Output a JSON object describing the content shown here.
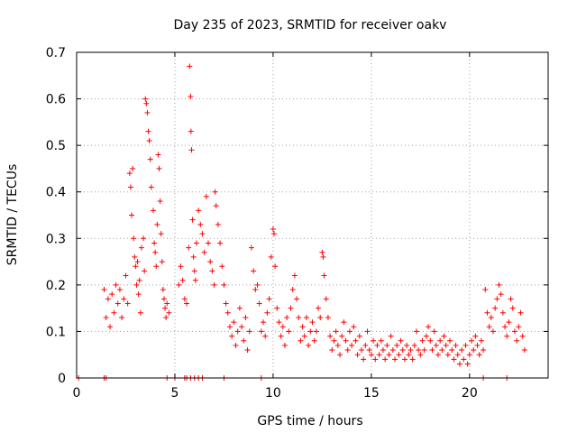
{
  "chart_data": {
    "type": "scatter",
    "title": "Day 235 of 2023, SRMTID for receiver oakv",
    "xlabel": "GPS time / hours",
    "ylabel": "SRMTID / TECUs",
    "xlim": [
      0,
      24
    ],
    "ylim": [
      0,
      0.7
    ],
    "grid": true,
    "marker": "+",
    "color": "#ff0000",
    "x_ticks": [
      {
        "value": 0,
        "label": "0"
      },
      {
        "value": 5,
        "label": "5"
      },
      {
        "value": 10,
        "label": "10"
      },
      {
        "value": 15,
        "label": "15"
      },
      {
        "value": 20,
        "label": "20"
      }
    ],
    "y_ticks": [
      {
        "value": 0,
        "label": "0"
      },
      {
        "value": 0.1,
        "label": "0.1"
      },
      {
        "value": 0.2,
        "label": "0.2"
      },
      {
        "value": 0.3,
        "label": "0.3"
      },
      {
        "value": 0.4,
        "label": "0.4"
      },
      {
        "value": 0.5,
        "label": "0.5"
      },
      {
        "value": 0.6,
        "label": "0.6"
      },
      {
        "value": 0.7,
        "label": "0.7"
      }
    ],
    "series": [
      {
        "name": "SRMTID",
        "points": [
          [
            0.1,
            0.0
          ],
          [
            1.4,
            0.0
          ],
          [
            1.5,
            0.0
          ],
          [
            4.6,
            0.0
          ],
          [
            5.0,
            0.0
          ],
          [
            5.5,
            0.0
          ],
          [
            5.6,
            0.0
          ],
          [
            5.8,
            0.0
          ],
          [
            6.0,
            0.0
          ],
          [
            6.2,
            0.0
          ],
          [
            6.4,
            0.0
          ],
          [
            7.5,
            0.0
          ],
          [
            9.4,
            0.0
          ],
          [
            20.7,
            0.0
          ],
          [
            21.9,
            0.0
          ],
          [
            1.4,
            0.19
          ],
          [
            1.5,
            0.13
          ],
          [
            1.6,
            0.17
          ],
          [
            1.7,
            0.11
          ],
          [
            1.8,
            0.18
          ],
          [
            1.9,
            0.14
          ],
          [
            2.0,
            0.2
          ],
          [
            2.1,
            0.16
          ],
          [
            2.2,
            0.19
          ],
          [
            2.3,
            0.13
          ],
          [
            2.4,
            0.17
          ],
          [
            2.5,
            0.22
          ],
          [
            2.6,
            0.16
          ],
          [
            2.7,
            0.44
          ],
          [
            2.75,
            0.41
          ],
          [
            2.8,
            0.35
          ],
          [
            2.85,
            0.45
          ],
          [
            2.9,
            0.3
          ],
          [
            2.95,
            0.26
          ],
          [
            3.0,
            0.24
          ],
          [
            3.05,
            0.2
          ],
          [
            3.1,
            0.25
          ],
          [
            3.15,
            0.18
          ],
          [
            3.2,
            0.21
          ],
          [
            3.25,
            0.14
          ],
          [
            3.3,
            0.28
          ],
          [
            3.4,
            0.3
          ],
          [
            3.45,
            0.23
          ],
          [
            3.5,
            0.6
          ],
          [
            3.55,
            0.59
          ],
          [
            3.6,
            0.57
          ],
          [
            3.65,
            0.53
          ],
          [
            3.7,
            0.51
          ],
          [
            3.75,
            0.47
          ],
          [
            3.8,
            0.41
          ],
          [
            3.9,
            0.36
          ],
          [
            3.95,
            0.29
          ],
          [
            4.0,
            0.27
          ],
          [
            4.05,
            0.24
          ],
          [
            4.1,
            0.33
          ],
          [
            4.15,
            0.48
          ],
          [
            4.2,
            0.45
          ],
          [
            4.25,
            0.38
          ],
          [
            4.3,
            0.31
          ],
          [
            4.35,
            0.25
          ],
          [
            4.4,
            0.19
          ],
          [
            4.45,
            0.17
          ],
          [
            4.5,
            0.15
          ],
          [
            4.55,
            0.13
          ],
          [
            4.6,
            0.16
          ],
          [
            4.7,
            0.14
          ],
          [
            5.2,
            0.2
          ],
          [
            5.3,
            0.24
          ],
          [
            5.4,
            0.21
          ],
          [
            5.5,
            0.17
          ],
          [
            5.6,
            0.16
          ],
          [
            5.7,
            0.28
          ],
          [
            5.75,
            0.67
          ],
          [
            5.8,
            0.605
          ],
          [
            5.82,
            0.53
          ],
          [
            5.85,
            0.49
          ],
          [
            5.9,
            0.34
          ],
          [
            5.95,
            0.26
          ],
          [
            6.0,
            0.23
          ],
          [
            6.05,
            0.21
          ],
          [
            6.1,
            0.29
          ],
          [
            6.2,
            0.36
          ],
          [
            6.3,
            0.33
          ],
          [
            6.4,
            0.31
          ],
          [
            6.5,
            0.27
          ],
          [
            6.6,
            0.39
          ],
          [
            6.7,
            0.29
          ],
          [
            6.8,
            0.25
          ],
          [
            6.9,
            0.23
          ],
          [
            7.0,
            0.2
          ],
          [
            7.05,
            0.4
          ],
          [
            7.1,
            0.37
          ],
          [
            7.2,
            0.33
          ],
          [
            7.3,
            0.29
          ],
          [
            7.4,
            0.24
          ],
          [
            7.5,
            0.2
          ],
          [
            7.6,
            0.16
          ],
          [
            7.7,
            0.14
          ],
          [
            7.8,
            0.11
          ],
          [
            7.9,
            0.09
          ],
          [
            8.0,
            0.12
          ],
          [
            8.1,
            0.07
          ],
          [
            8.2,
            0.1
          ],
          [
            8.3,
            0.15
          ],
          [
            8.4,
            0.11
          ],
          [
            8.5,
            0.08
          ],
          [
            8.6,
            0.13
          ],
          [
            8.7,
            0.06
          ],
          [
            8.8,
            0.1
          ],
          [
            8.9,
            0.28
          ],
          [
            9.0,
            0.23
          ],
          [
            9.1,
            0.19
          ],
          [
            9.2,
            0.2
          ],
          [
            9.3,
            0.16
          ],
          [
            9.4,
            0.1
          ],
          [
            9.5,
            0.12
          ],
          [
            9.6,
            0.09
          ],
          [
            9.7,
            0.14
          ],
          [
            9.8,
            0.17
          ],
          [
            9.9,
            0.26
          ],
          [
            10.0,
            0.32
          ],
          [
            10.05,
            0.31
          ],
          [
            10.1,
            0.24
          ],
          [
            10.2,
            0.15
          ],
          [
            10.3,
            0.12
          ],
          [
            10.4,
            0.09
          ],
          [
            10.5,
            0.11
          ],
          [
            10.6,
            0.07
          ],
          [
            10.7,
            0.13
          ],
          [
            10.8,
            0.1
          ],
          [
            10.9,
            0.15
          ],
          [
            11.0,
            0.19
          ],
          [
            11.1,
            0.22
          ],
          [
            11.2,
            0.17
          ],
          [
            11.3,
            0.13
          ],
          [
            11.4,
            0.08
          ],
          [
            11.5,
            0.11
          ],
          [
            11.6,
            0.09
          ],
          [
            11.7,
            0.13
          ],
          [
            11.8,
            0.07
          ],
          [
            11.9,
            0.1
          ],
          [
            12.0,
            0.12
          ],
          [
            12.1,
            0.08
          ],
          [
            12.2,
            0.1
          ],
          [
            12.3,
            0.15
          ],
          [
            12.4,
            0.13
          ],
          [
            12.5,
            0.27
          ],
          [
            12.55,
            0.26
          ],
          [
            12.6,
            0.22
          ],
          [
            12.7,
            0.17
          ],
          [
            12.8,
            0.13
          ],
          [
            12.9,
            0.09
          ],
          [
            13.0,
            0.06
          ],
          [
            13.1,
            0.08
          ],
          [
            13.2,
            0.1
          ],
          [
            13.3,
            0.07
          ],
          [
            13.4,
            0.05
          ],
          [
            13.5,
            0.09
          ],
          [
            13.6,
            0.12
          ],
          [
            13.7,
            0.08
          ],
          [
            13.8,
            0.06
          ],
          [
            13.9,
            0.1
          ],
          [
            14.0,
            0.07
          ],
          [
            14.1,
            0.11
          ],
          [
            14.2,
            0.08
          ],
          [
            14.3,
            0.05
          ],
          [
            14.4,
            0.09
          ],
          [
            14.5,
            0.06
          ],
          [
            14.6,
            0.04
          ],
          [
            14.7,
            0.07
          ],
          [
            14.8,
            0.1
          ],
          [
            14.9,
            0.06
          ],
          [
            15.0,
            0.05
          ],
          [
            15.1,
            0.08
          ],
          [
            15.2,
            0.04
          ],
          [
            15.3,
            0.07
          ],
          [
            15.4,
            0.05
          ],
          [
            15.5,
            0.08
          ],
          [
            15.6,
            0.06
          ],
          [
            15.7,
            0.04
          ],
          [
            15.8,
            0.07
          ],
          [
            15.9,
            0.05
          ],
          [
            16.0,
            0.09
          ],
          [
            16.1,
            0.06
          ],
          [
            16.2,
            0.04
          ],
          [
            16.3,
            0.07
          ],
          [
            16.4,
            0.05
          ],
          [
            16.5,
            0.08
          ],
          [
            16.6,
            0.06
          ],
          [
            16.7,
            0.04
          ],
          [
            16.8,
            0.07
          ],
          [
            16.9,
            0.05
          ],
          [
            17.0,
            0.06
          ],
          [
            17.1,
            0.04
          ],
          [
            17.2,
            0.07
          ],
          [
            17.3,
            0.1
          ],
          [
            17.4,
            0.06
          ],
          [
            17.5,
            0.05
          ],
          [
            17.6,
            0.08
          ],
          [
            17.7,
            0.06
          ],
          [
            17.8,
            0.09
          ],
          [
            17.9,
            0.11
          ],
          [
            18.0,
            0.08
          ],
          [
            18.1,
            0.06
          ],
          [
            18.2,
            0.1
          ],
          [
            18.3,
            0.07
          ],
          [
            18.4,
            0.05
          ],
          [
            18.5,
            0.08
          ],
          [
            18.6,
            0.06
          ],
          [
            18.7,
            0.09
          ],
          [
            18.8,
            0.07
          ],
          [
            18.9,
            0.05
          ],
          [
            19.0,
            0.08
          ],
          [
            19.1,
            0.06
          ],
          [
            19.2,
            0.04
          ],
          [
            19.3,
            0.07
          ],
          [
            19.4,
            0.05
          ],
          [
            19.5,
            0.03
          ],
          [
            19.6,
            0.06
          ],
          [
            19.7,
            0.04
          ],
          [
            19.8,
            0.07
          ],
          [
            19.9,
            0.03
          ],
          [
            20.0,
            0.05
          ],
          [
            20.1,
            0.08
          ],
          [
            20.2,
            0.06
          ],
          [
            20.3,
            0.09
          ],
          [
            20.4,
            0.07
          ],
          [
            20.5,
            0.05
          ],
          [
            20.6,
            0.08
          ],
          [
            20.7,
            0.06
          ],
          [
            20.8,
            0.19
          ],
          [
            20.9,
            0.14
          ],
          [
            21.0,
            0.11
          ],
          [
            21.1,
            0.13
          ],
          [
            21.2,
            0.1
          ],
          [
            21.3,
            0.15
          ],
          [
            21.4,
            0.17
          ],
          [
            21.5,
            0.2
          ],
          [
            21.6,
            0.18
          ],
          [
            21.7,
            0.14
          ],
          [
            21.8,
            0.11
          ],
          [
            21.9,
            0.09
          ],
          [
            22.0,
            0.12
          ],
          [
            22.1,
            0.17
          ],
          [
            22.2,
            0.15
          ],
          [
            22.3,
            0.1
          ],
          [
            22.4,
            0.08
          ],
          [
            22.5,
            0.11
          ],
          [
            22.6,
            0.14
          ],
          [
            22.7,
            0.09
          ],
          [
            22.8,
            0.06
          ]
        ]
      }
    ]
  }
}
